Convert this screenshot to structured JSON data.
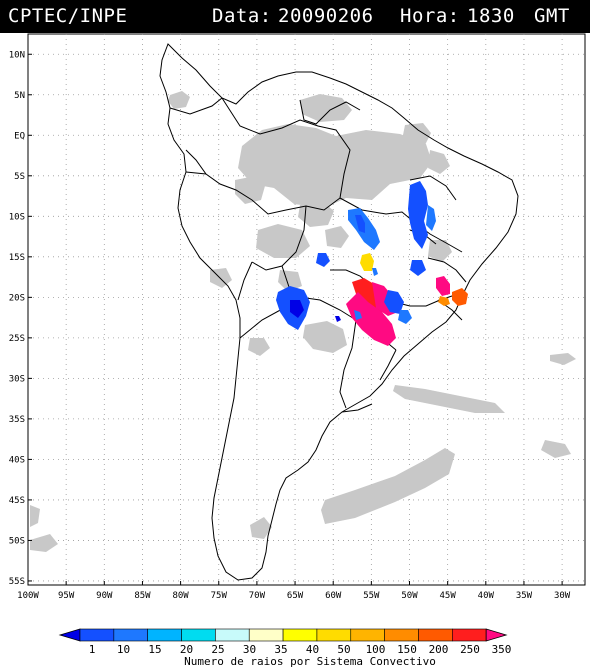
{
  "header": {
    "agency": "CPTEC/INPE",
    "date_label": "Data:",
    "date_value": "20090206",
    "time_label": "Hora:",
    "time_value": "1830",
    "time_zone": "GMT"
  },
  "map": {
    "lat_labels": [
      "10N",
      "5N",
      "EQ",
      "5S",
      "10S",
      "15S",
      "20S",
      "25S",
      "30S",
      "35S",
      "40S",
      "45S",
      "50S",
      "55S"
    ],
    "lon_labels": [
      "100W",
      "95W",
      "90W",
      "85W",
      "80W",
      "75W",
      "70W",
      "65W",
      "60W",
      "55W",
      "50W",
      "45W",
      "40W",
      "35W",
      "30W"
    ],
    "frame_color": "#000000",
    "grid": true
  },
  "colorbar": {
    "labels": [
      "1",
      "10",
      "15",
      "20",
      "25",
      "30",
      "35",
      "40",
      "50",
      "100",
      "150",
      "200",
      "250",
      "350"
    ],
    "colors": [
      "#0000e6",
      "#1450ff",
      "#1e78ff",
      "#00b4ff",
      "#00dcf0",
      "#c8fafa",
      "#ffffc8",
      "#ffff00",
      "#ffdc00",
      "#ffb400",
      "#ff8c00",
      "#ff5a00",
      "#ff1e1e",
      "#ff0a82"
    ],
    "title": "Numero de raios por Sistema Convectivo"
  },
  "legend_colors": {
    "cloud_gray": "#c8c8c8"
  }
}
